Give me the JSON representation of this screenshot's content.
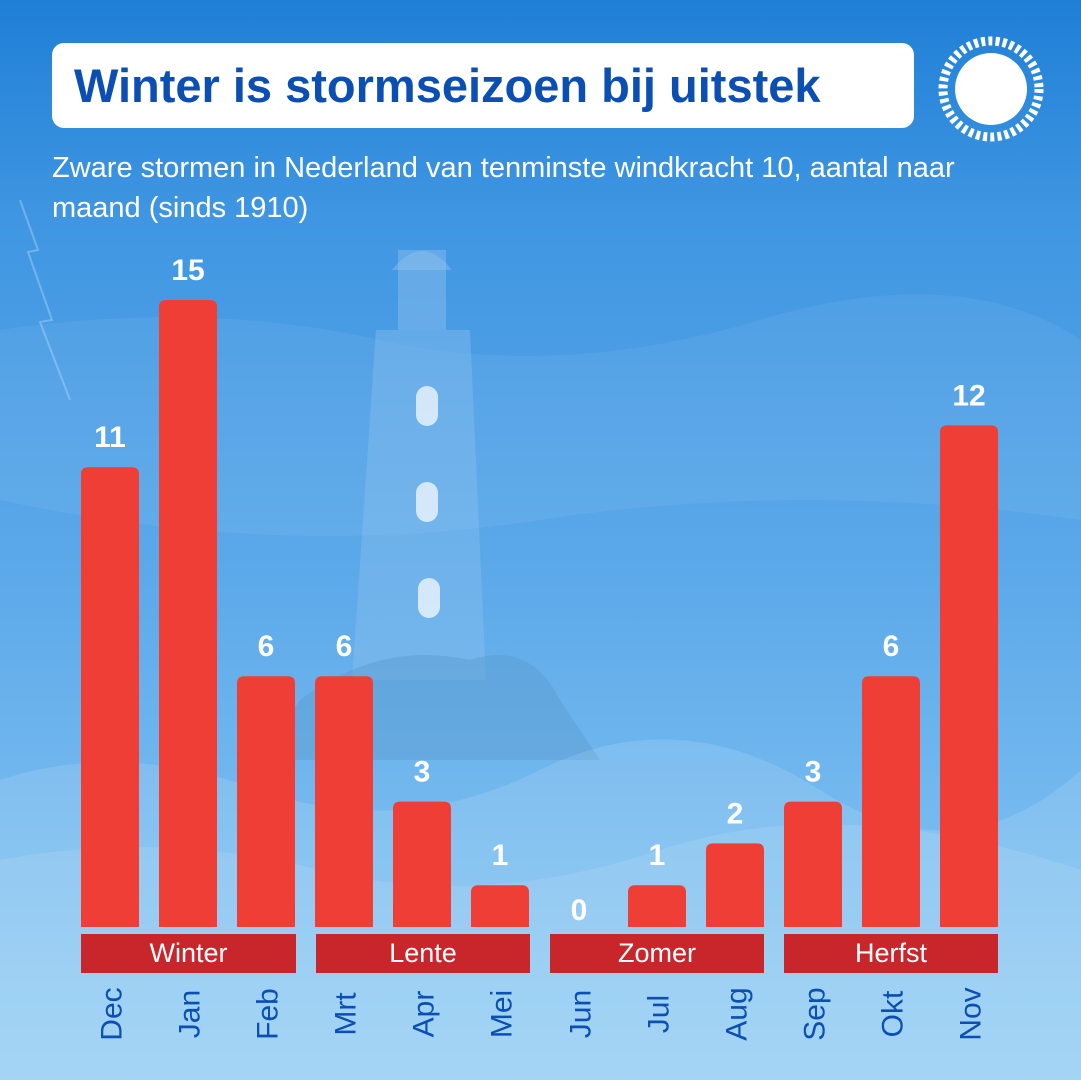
{
  "title": "Winter is stormseizoen bij uitstek",
  "subtitle": "Zware stormen in Nederland van tenminste windkracht 10, aantal naar maand (sinds 1910)",
  "logo_icon": "sun-icon",
  "colors": {
    "bar": "#ef3e36",
    "season_band": "#c8262a",
    "title_text": "#0b4fb3",
    "month_label": "#0b4fb3",
    "value_label": "#ffffff"
  },
  "chart_data": {
    "type": "bar",
    "title": "Winter is stormseizoen bij uitstek",
    "subtitle": "Zware stormen in Nederland van tenminste windkracht 10, aantal naar maand (sinds 1910)",
    "xlabel": "",
    "ylabel": "",
    "categories": [
      "Dec",
      "Jan",
      "Feb",
      "Mrt",
      "Apr",
      "Mei",
      "Jun",
      "Jul",
      "Aug",
      "Sep",
      "Okt",
      "Nov"
    ],
    "values": [
      11,
      15,
      6,
      6,
      3,
      1,
      0,
      1,
      2,
      3,
      6,
      12
    ],
    "ylim": [
      0,
      15
    ],
    "grid": false,
    "groups": [
      {
        "name": "Winter",
        "categories": [
          "Dec",
          "Jan",
          "Feb"
        ]
      },
      {
        "name": "Lente",
        "categories": [
          "Mrt",
          "Apr",
          "Mei"
        ]
      },
      {
        "name": "Zomer",
        "categories": [
          "Jun",
          "Jul",
          "Aug"
        ]
      },
      {
        "name": "Herfst",
        "categories": [
          "Sep",
          "Okt",
          "Nov"
        ]
      }
    ]
  }
}
